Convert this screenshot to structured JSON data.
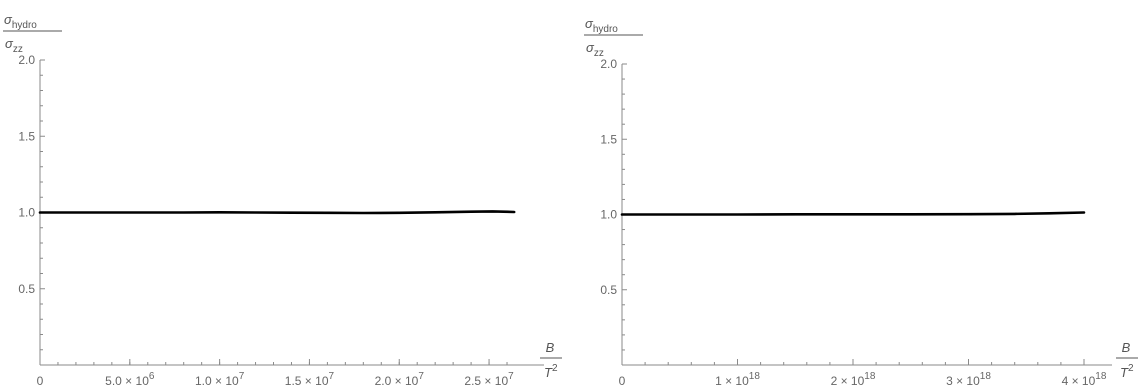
{
  "chart_data": [
    {
      "type": "line",
      "ylabel": {
        "num_symbol": "σ",
        "num_sub": "hydro",
        "den_symbol": "σ",
        "den_sub": "zz"
      },
      "xlabel": {
        "num": "B",
        "den_base": "T",
        "den_exp": "2"
      },
      "xlim": [
        0,
        26500000
      ],
      "ylim": [
        0,
        2.0
      ],
      "yticks": [
        {
          "value": 0.5,
          "label": "0.5"
        },
        {
          "value": 1.0,
          "label": "1.0"
        },
        {
          "value": 1.5,
          "label": "1.5"
        },
        {
          "value": 2.0,
          "label": "2.0"
        }
      ],
      "xticks": [
        {
          "value": 0,
          "mant": "0",
          "exp": ""
        },
        {
          "value": 5000000,
          "mant": "5.0 × 10",
          "exp": "6"
        },
        {
          "value": 10000000,
          "mant": "1.0 × 10",
          "exp": "7"
        },
        {
          "value": 15000000,
          "mant": "1.5 × 10",
          "exp": "7"
        },
        {
          "value": 20000000,
          "mant": "2.0 × 10",
          "exp": "7"
        },
        {
          "value": 25000000,
          "mant": "2.5 × 10",
          "exp": "7"
        }
      ],
      "minor_step": 1000000,
      "series": [
        {
          "x": [
            0,
            2000000,
            4000000,
            6000000,
            8000000,
            10000000,
            12000000,
            14000000,
            16000000,
            18000000,
            20000000,
            22000000,
            24000000,
            25200000,
            26400000
          ],
          "y": [
            1.0,
            1.0,
            1.0,
            1.0,
            1.0,
            1.001,
            1.0,
            0.999,
            0.998,
            0.997,
            0.998,
            1.001,
            1.005,
            1.007,
            1.003
          ]
        }
      ]
    },
    {
      "type": "line",
      "ylabel": {
        "num_symbol": "σ",
        "num_sub": "hydro",
        "den_symbol": "σ",
        "den_sub": "zz"
      },
      "xlabel": {
        "num": "B",
        "den_base": "T",
        "den_exp": "2"
      },
      "xlim": [
        0,
        4e+18
      ],
      "ylim": [
        0,
        2.0
      ],
      "yticks": [
        {
          "value": 0.5,
          "label": "0.5"
        },
        {
          "value": 1.0,
          "label": "1.0"
        },
        {
          "value": 1.5,
          "label": "1.5"
        },
        {
          "value": 2.0,
          "label": "2.0"
        }
      ],
      "xticks": [
        {
          "value": 0,
          "mant": "0",
          "exp": ""
        },
        {
          "value": 1e+18,
          "mant": "1 × 10",
          "exp": "18"
        },
        {
          "value": 2e+18,
          "mant": "2 × 10",
          "exp": "18"
        },
        {
          "value": 3e+18,
          "mant": "3 × 10",
          "exp": "18"
        },
        {
          "value": 4e+18,
          "mant": "4 × 10",
          "exp": "18"
        }
      ],
      "minor_step": 2e+17,
      "series": [
        {
          "x": [
            0,
            5e+17,
            1e+18,
            1.5e+18,
            2e+18,
            2.5e+18,
            3e+18,
            3.4e+18,
            3.7e+18,
            4e+18
          ],
          "y": [
            1.0,
            1.0,
            1.0,
            1.001,
            1.001,
            1.001,
            1.002,
            1.004,
            1.008,
            1.013
          ]
        }
      ]
    }
  ]
}
